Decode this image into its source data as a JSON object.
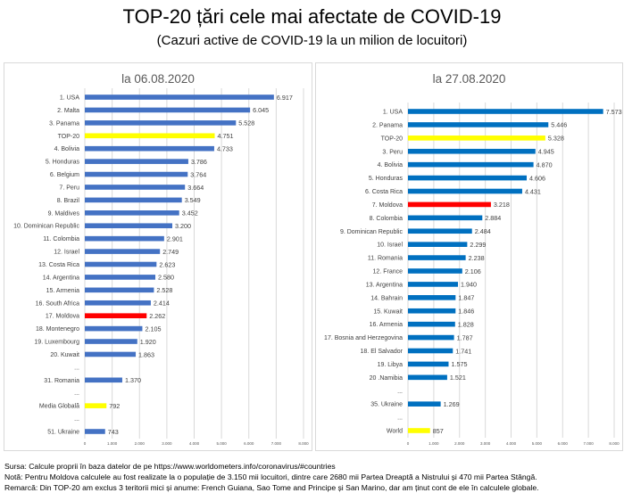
{
  "title": "TOP-20 țări cele mai afectate de COVID-19",
  "subtitle": "(Cazuri active de COVID-19 la un milion de locuitori)",
  "colors": {
    "bar_left": "#4472c4",
    "bar_right": "#0070c0",
    "highlight_yellow": "#ffff00",
    "highlight_red": "#ff0000",
    "grid": "#d9d9d9"
  },
  "chart_data": [
    {
      "type": "bar",
      "orientation": "horizontal",
      "title": "la 06.08.2020",
      "xlim": [
        0,
        8000
      ],
      "ticks": [
        "0",
        "1.000",
        "2.000",
        "3.000",
        "4.000",
        "5.000",
        "6.000",
        "7.000",
        "8.000"
      ],
      "grid": true,
      "categories": [
        "1. USA",
        "2. Malta",
        "3. Panama",
        "TOP-20",
        "4. Bolivia",
        "5. Honduras",
        "6. Belgium",
        "7. Peru",
        "8. Brazil",
        "9. Maldives",
        "10. Dominican Republic",
        "11. Colombia",
        "12. Israel",
        "13. Costa Rica",
        "14. Argentina",
        "15. Armenia",
        "16. South Africa",
        "17. Moldova",
        "18. Montenegro",
        "19. Luxembourg",
        "20. Kuwait",
        "...",
        "31. Romania",
        "...",
        "Media Globală",
        "...",
        "51. Ukraine"
      ],
      "values": [
        6917,
        6045,
        5528,
        4751,
        4733,
        3786,
        3764,
        3664,
        3549,
        3452,
        3200,
        2901,
        2749,
        2623,
        2580,
        2528,
        2414,
        2262,
        2105,
        1920,
        1863,
        null,
        1370,
        null,
        792,
        null,
        743
      ],
      "labels": [
        "6.917",
        "6.045",
        "5.528",
        "4.751",
        "4.733",
        "3.786",
        "3.764",
        "3.664",
        "3.549",
        "3.452",
        "3.200",
        "2.901",
        "2.749",
        "2.623",
        "2.580",
        "2.528",
        "2.414",
        "2.262",
        "2.105",
        "1.920",
        "1.863",
        "",
        "1.370",
        "",
        "792",
        "",
        "743"
      ],
      "highlight": {
        "TOP-20": "yellow",
        "Media Globală": "yellow",
        "17. Moldova": "red"
      }
    },
    {
      "type": "bar",
      "orientation": "horizontal",
      "title": "la 27.08.2020",
      "xlim": [
        0,
        8000
      ],
      "ticks": [
        "0",
        "1.000",
        "2.000",
        "3.000",
        "4.000",
        "5.000",
        "6.000",
        "7.000",
        "8.000"
      ],
      "grid": true,
      "categories": [
        "1. USA",
        "2. Panama",
        "TOP-20",
        "3. Peru",
        "4. Bolivia",
        "5. Honduras",
        "6. Costa Rica",
        "7. Moldova",
        "8. Colombia",
        "9. Dominican Republic",
        "10. Israel",
        "11. Romania",
        "12. France",
        "13. Argentina",
        "14. Bahrain",
        "15. Kuwait",
        "16. Armenia",
        "17. Bosnia and Herzegovina",
        "18. El Salvador",
        "19. Libya",
        "20 .Namibia",
        "...",
        "35. Ukraine",
        "...",
        "World"
      ],
      "values": [
        7573,
        5446,
        5328,
        4945,
        4870,
        4606,
        4431,
        3218,
        2884,
        2484,
        2299,
        2238,
        2106,
        1940,
        1847,
        1846,
        1828,
        1787,
        1741,
        1575,
        1521,
        null,
        1269,
        null,
        857
      ],
      "labels": [
        "7.573",
        "5.446",
        "5.328",
        "4.945",
        "4.870",
        "4.606",
        "4.431",
        "3.218",
        "2.884",
        "2.484",
        "2.299",
        "2.238",
        "2.106",
        "1.940",
        "1.847",
        "1.846",
        "1.828",
        "1.787",
        "1.741",
        "1.575",
        "1.521",
        "",
        "1.269",
        "",
        "857"
      ],
      "highlight": {
        "TOP-20": "yellow",
        "World": "yellow",
        "7. Moldova": "red"
      }
    }
  ],
  "footer": [
    "Sursa: Calcule proprii în baza datelor de pe https://www.worldometers.info/coronavirus/#countries",
    "Notă: Pentru Moldova calculele au fost realizate la o populație de 3.150 mii locuitori, dintre care 2680 mii Partea Dreaptă a Nistrului și 470 mii Partea Stângă.",
    "Remarcă: Din TOP-20 am exclus 3 teritorii mici și anume: French Guiana, Sao Tome and Principe și San Marino, dar am ținut cont de ele în calculele globale."
  ]
}
